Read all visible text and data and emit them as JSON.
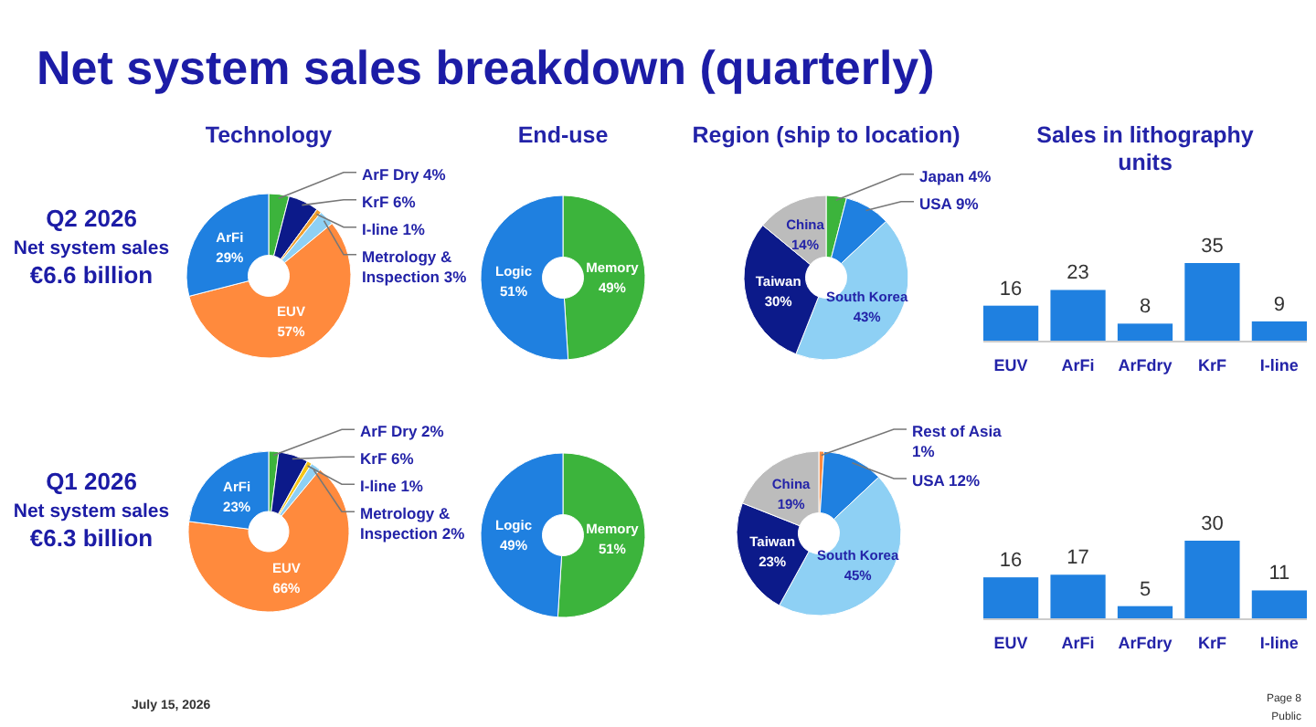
{
  "chart_data": [
    {
      "type": "other",
      "title": "Net system sales breakdown (quarterly)"
    },
    {
      "type": "other",
      "title": "Q2 2026",
      "annotations": [
        "Net system sales",
        "€6.6 billion"
      ]
    },
    {
      "type": "donut",
      "title": "Technology",
      "categories": [
        "ArF Dry",
        "KrF",
        "I-line",
        "Metrology & Inspection",
        "EUV",
        "ArFi"
      ],
      "values": [
        4,
        6,
        1,
        3,
        57,
        29
      ],
      "value_labels": [
        "4%",
        "6%",
        "1%",
        "3%",
        "57%",
        "29%"
      ],
      "colors": [
        "#3cb43c",
        "#0c1a8a",
        "#f0a030",
        "#8ed0f4",
        "#ff8a3d",
        "#1f80e0"
      ]
    },
    {
      "type": "donut",
      "title": "End-use",
      "categories": [
        "Memory",
        "Logic"
      ],
      "values": [
        49,
        51
      ],
      "value_labels": [
        "49%",
        "51%"
      ],
      "colors": [
        "#3cb43c",
        "#1f80e0"
      ]
    },
    {
      "type": "donut",
      "title": "Region (ship to location)",
      "categories": [
        "Japan",
        "USA",
        "South Korea",
        "Taiwan",
        "China"
      ],
      "values": [
        4,
        9,
        43,
        30,
        14
      ],
      "value_labels": [
        "4%",
        "9%",
        "43%",
        "30%",
        "14%"
      ],
      "colors": [
        "#3cb43c",
        "#1f80e0",
        "#8ed0f4",
        "#0c1a8a",
        "#bcbcbc"
      ]
    },
    {
      "type": "bar",
      "title": "Sales in lithography units",
      "categories": [
        "EUV",
        "ArFi",
        "ArFdry",
        "KrF",
        "I-line"
      ],
      "values": [
        16,
        23,
        8,
        35,
        9
      ],
      "color": "#1f80e0",
      "data_labels": true
    },
    {
      "type": "other",
      "title": "Q1 2026",
      "annotations": [
        "Net system sales",
        "€6.3 billion"
      ]
    },
    {
      "type": "donut",
      "categories": [
        "ArF Dry",
        "KrF",
        "I-line",
        "Metrology & Inspection",
        "EUV",
        "ArFi"
      ],
      "values": [
        2,
        6,
        1,
        2,
        66,
        23
      ],
      "value_labels": [
        "2%",
        "6%",
        "1%",
        "2%",
        "66%",
        "23%"
      ],
      "colors": [
        "#3cb43c",
        "#0c1a8a",
        "#f5c518",
        "#8ed0f4",
        "#ff8a3d",
        "#1f80e0"
      ]
    },
    {
      "type": "donut",
      "categories": [
        "Memory",
        "Logic"
      ],
      "values": [
        51,
        49
      ],
      "value_labels": [
        "51%",
        "49%"
      ],
      "colors": [
        "#3cb43c",
        "#1f80e0"
      ]
    },
    {
      "type": "donut",
      "categories": [
        "Rest of Asia",
        "USA",
        "South Korea",
        "Taiwan",
        "China"
      ],
      "values": [
        1,
        12,
        45,
        23,
        19
      ],
      "value_labels": [
        "1%",
        "12%",
        "45%",
        "23%",
        "19%"
      ],
      "colors": [
        "#ff8a3d",
        "#1f80e0",
        "#8ed0f4",
        "#0c1a8a",
        "#bcbcbc"
      ]
    },
    {
      "type": "bar",
      "categories": [
        "EUV",
        "ArFi",
        "ArFdry",
        "KrF",
        "I-line"
      ],
      "values": [
        16,
        17,
        5,
        30,
        11
      ],
      "color": "#1f80e0",
      "data_labels": true
    },
    {
      "type": "other",
      "annotations": [
        "July 15, 2026",
        "Page 8",
        "Public"
      ]
    }
  ]
}
